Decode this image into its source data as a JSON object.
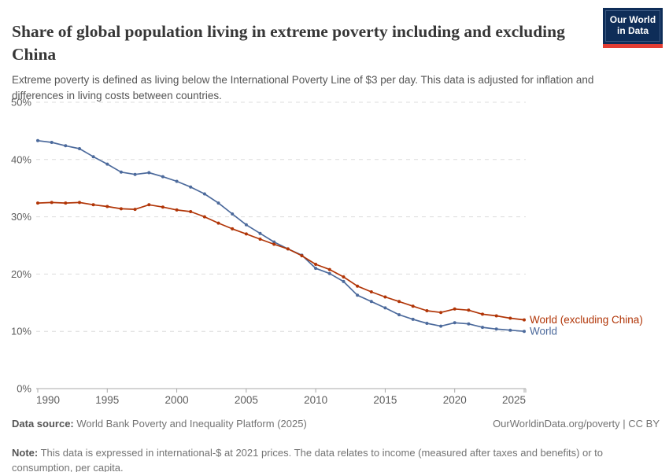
{
  "header": {
    "title": "Share of global population living in extreme poverty including and excluding China",
    "subtitle": "Extreme poverty is defined as living below the International Poverty Line of $3 per day. This data is adjusted for inflation and differences in living costs between countries.",
    "logo": {
      "line1": "Our World",
      "line2": "in Data"
    }
  },
  "chart_data": {
    "type": "line",
    "title": "Share of global population living in extreme poverty including and excluding China",
    "xlabel": "",
    "ylabel": "",
    "xlim": [
      1990,
      2025
    ],
    "ylim": [
      0,
      50
    ],
    "xticks": [
      1990,
      1995,
      2000,
      2005,
      2010,
      2015,
      2020,
      2025
    ],
    "yticks": [
      0,
      10,
      20,
      30,
      40,
      50
    ],
    "ytick_suffix": "%",
    "grid": "horizontal-dashed",
    "legend_position": "end-of-line",
    "x": [
      1990,
      1991,
      1992,
      1993,
      1994,
      1995,
      1996,
      1997,
      1998,
      1999,
      2000,
      2001,
      2002,
      2003,
      2004,
      2005,
      2006,
      2007,
      2008,
      2009,
      2010,
      2011,
      2012,
      2013,
      2014,
      2015,
      2016,
      2017,
      2018,
      2019,
      2020,
      2021,
      2022,
      2023,
      2024,
      2025
    ],
    "series": [
      {
        "name": "World (excluding China)",
        "color": "#B13507",
        "values": [
          32.4,
          32.5,
          32.4,
          32.5,
          32.1,
          31.8,
          31.4,
          31.3,
          32.1,
          31.7,
          31.2,
          30.9,
          30.0,
          28.9,
          27.9,
          27.0,
          26.1,
          25.2,
          24.4,
          23.2,
          21.7,
          20.8,
          19.5,
          17.9,
          16.9,
          16.0,
          15.2,
          14.4,
          13.6,
          13.3,
          13.9,
          13.7,
          13.0,
          12.7,
          12.3,
          12.0
        ]
      },
      {
        "name": "World",
        "color": "#4C6A9C",
        "values": [
          43.3,
          43.0,
          42.4,
          41.9,
          40.5,
          39.2,
          37.8,
          37.4,
          37.7,
          37.0,
          36.2,
          35.2,
          34.0,
          32.4,
          30.5,
          28.6,
          27.1,
          25.6,
          24.4,
          23.3,
          21.0,
          20.1,
          18.7,
          16.3,
          15.2,
          14.1,
          12.9,
          12.1,
          11.4,
          10.9,
          11.5,
          11.3,
          10.7,
          10.4,
          10.2,
          10.0
        ]
      }
    ]
  },
  "footer": {
    "data_source_label": "Data source:",
    "data_source": " World Bank Poverty and Inequality Platform (2025)",
    "attribution": "OurWorldinData.org/poverty | CC BY",
    "note_label": "Note:",
    "note": " This data is expressed in international-$ at 2021 prices. The data relates to income (measured after taxes and benefits) or to consumption, per capita."
  }
}
